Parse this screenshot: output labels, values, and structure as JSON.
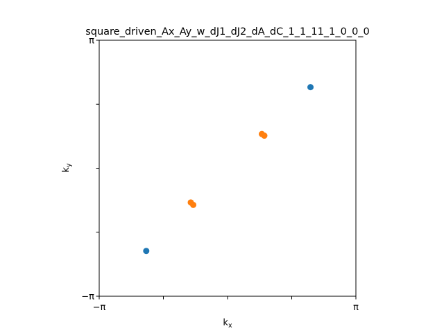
{
  "chart_data": {
    "type": "scatter",
    "title": "square_driven_Ax_Ay_w_dJ1_dJ2_dA_dC_1_1_11_1_0_0_0",
    "xlabel_base": "k",
    "xlabel_sub": "x",
    "ylabel_base": "k",
    "ylabel_sub": "y",
    "xlim": [
      -3.14159,
      3.14159
    ],
    "ylim": [
      -3.14159,
      3.14159
    ],
    "xticks": [
      -3.14159,
      -1.5708,
      0,
      1.5708,
      3.14159
    ],
    "yticks": [
      -3.14159,
      -1.5708,
      0,
      1.5708,
      3.14159
    ],
    "xtick_labels": [
      "−π",
      "",
      "",
      "",
      "π"
    ],
    "ytick_labels": [
      "−π",
      "",
      "",
      "",
      "π"
    ],
    "grid": false,
    "series": [
      {
        "color": "#1f77b4",
        "points": [
          {
            "x": -1.99,
            "y": -2.03
          },
          {
            "x": 2.03,
            "y": 1.99
          }
        ]
      },
      {
        "color": "#ff7f0e",
        "points": [
          {
            "x": -0.9,
            "y": -0.84
          },
          {
            "x": -0.84,
            "y": -0.9
          },
          {
            "x": 0.84,
            "y": 0.84
          },
          {
            "x": 0.9,
            "y": 0.8
          }
        ]
      }
    ]
  }
}
